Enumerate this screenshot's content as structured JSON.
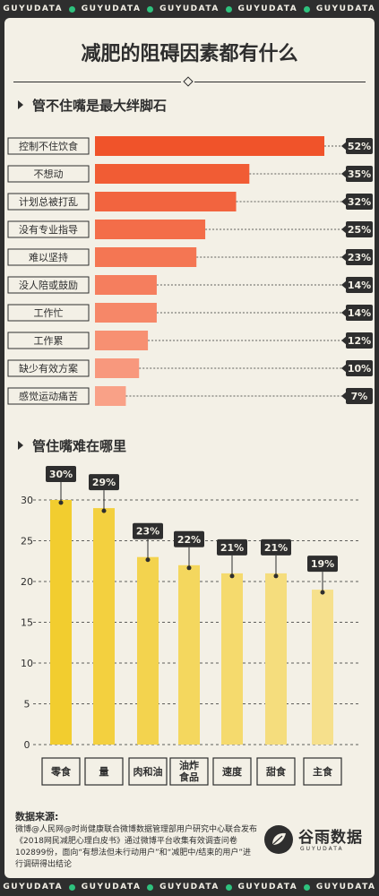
{
  "header": {
    "brand": "GUYUDATA",
    "repeats": 5
  },
  "title": "减肥的阻碍因素都有什么",
  "section1": {
    "title": "管不住嘴是最大绊脚石"
  },
  "section2": {
    "title": "管住嘴难在哪里"
  },
  "colors": {
    "background": "#2e2e2e",
    "panel": "#f3f0e6",
    "bar_orange_dark": "#f0532a",
    "bar_orange_light": "#f9a187",
    "bar_yellow_dark": "#f2cd2f",
    "bar_yellow_light": "#f6e08c",
    "accent_green": "#2ec27e"
  },
  "chart_data": [
    {
      "type": "bar",
      "orientation": "horizontal",
      "categories": [
        "控制不住饮食",
        "不想动",
        "计划总被打乱",
        "没有专业指导",
        "难以坚持",
        "没人陪或鼓励",
        "工作忙",
        "工作累",
        "缺少有效方案",
        "感觉运动痛苦"
      ],
      "values": [
        52,
        35,
        32,
        25,
        23,
        14,
        14,
        12,
        10,
        7
      ],
      "labels": [
        "52%",
        "35%",
        "32%",
        "25%",
        "23%",
        "14%",
        "14%",
        "12%",
        "10%",
        "7%"
      ]
    },
    {
      "type": "bar",
      "categories": [
        "零食",
        "量",
        "肉和油",
        "油炸\n食品",
        "速度",
        "甜食",
        "主食"
      ],
      "values": [
        30,
        29,
        23,
        22,
        21,
        21,
        19
      ],
      "labels": [
        "30%",
        "29%",
        "23%",
        "22%",
        "21%",
        "21%",
        "19%"
      ],
      "yticks": [
        "0",
        "5",
        "10",
        "15",
        "20",
        "25",
        "30"
      ],
      "ylim": [
        0,
        30
      ]
    }
  ],
  "source": {
    "title": "数据来源:",
    "text": "微博@人民网@时尚健康联合微博数据管理部用户研究中心联合发布《2018网民减肥心理白皮书》通过微博平台收集有效调查问卷102899份，面向“有想法但未行动用户”和“减肥中/结束的用户”进行调研得出结论"
  },
  "logo": {
    "name": "谷雨数据",
    "sub": "GUYUDATA"
  }
}
